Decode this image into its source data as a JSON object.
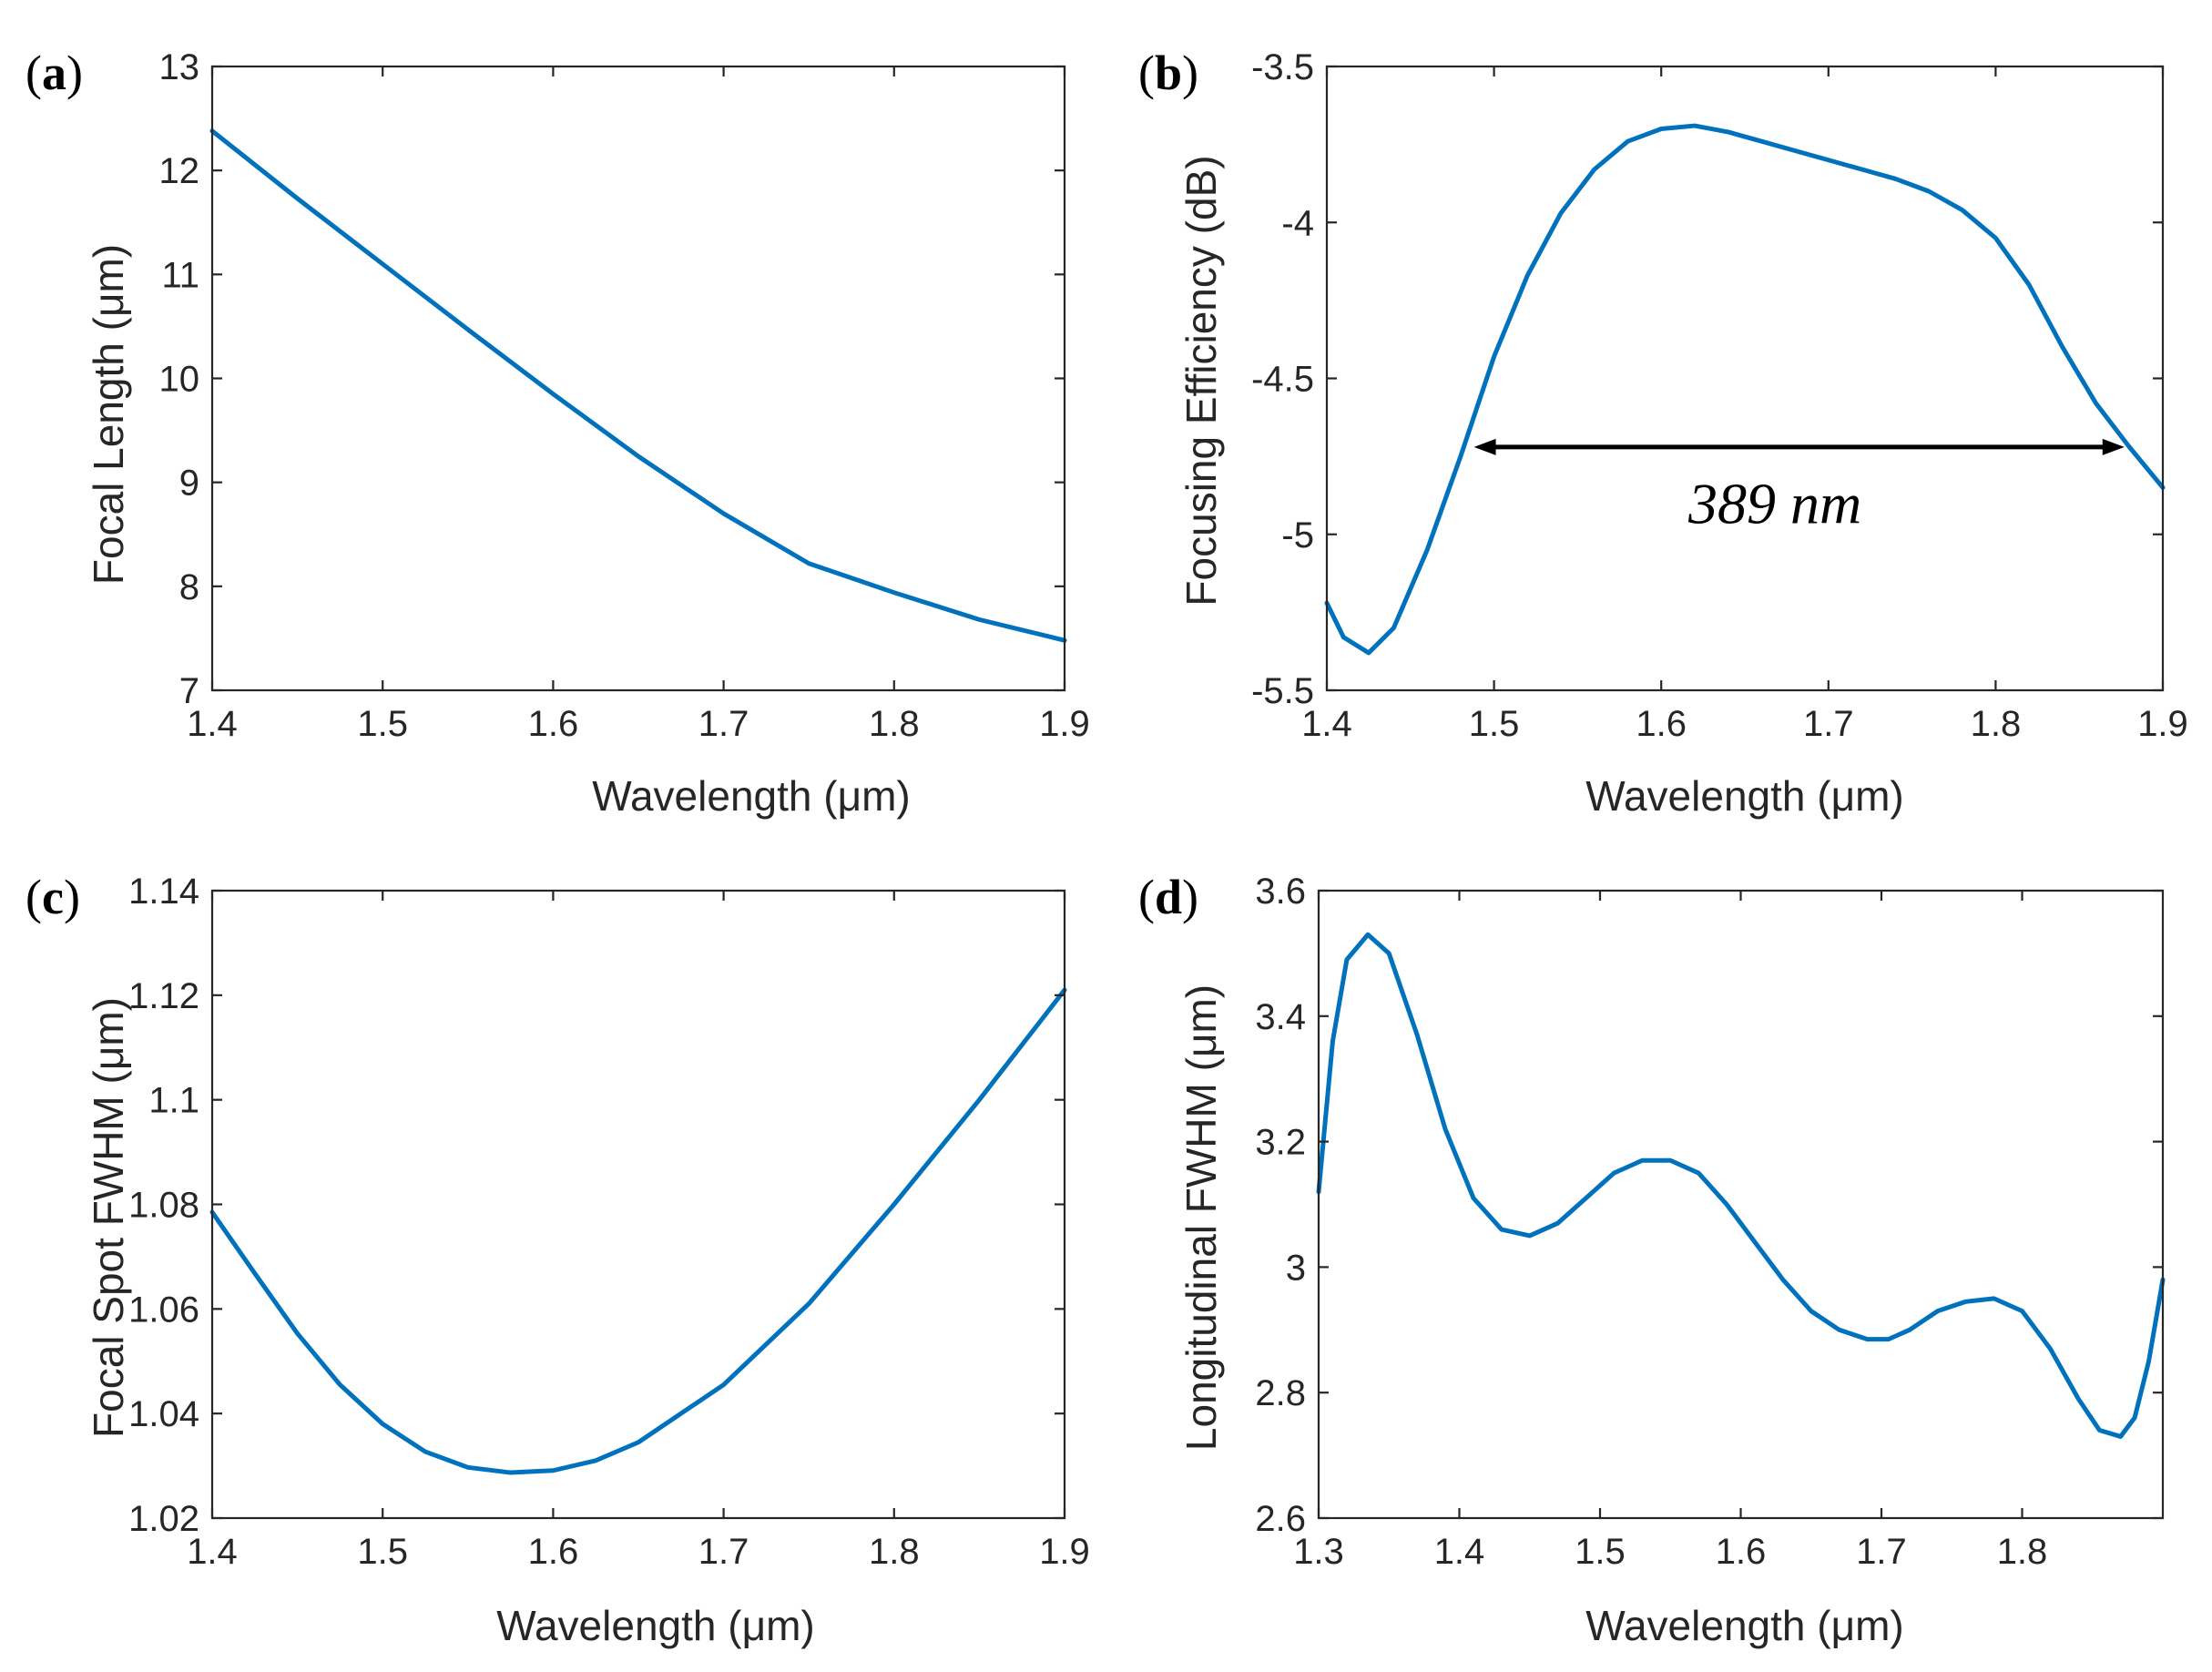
{
  "figure": {
    "background": "#ffffff",
    "line_color": "#0072BD"
  },
  "chart_data": [
    {
      "id": "a",
      "type": "line",
      "panel_label": "(a)",
      "panel_letter": "a",
      "title": "",
      "xlabel": "Wavelength (μm)",
      "ylabel": "Focal Length (μm)",
      "xlim": [
        1.4,
        1.9
      ],
      "ylim": [
        7,
        13
      ],
      "xticks": [
        1.4,
        1.5,
        1.6,
        1.7,
        1.8,
        1.9
      ],
      "yticks": [
        7,
        8,
        9,
        10,
        11,
        12,
        13
      ],
      "xtick_labels": [
        "1.4",
        "1.5",
        "1.6",
        "1.7",
        "1.8",
        "1.9"
      ],
      "ytick_labels": [
        "7",
        "8",
        "9",
        "10",
        "11",
        "12",
        "13"
      ],
      "series": [
        {
          "name": "Focal Length",
          "x": [
            1.4,
            1.45,
            1.5,
            1.55,
            1.6,
            1.65,
            1.7,
            1.75,
            1.8,
            1.85,
            1.9
          ],
          "y": [
            12.38,
            11.73,
            11.1,
            10.47,
            9.85,
            9.25,
            8.7,
            8.22,
            7.94,
            7.68,
            7.48
          ]
        }
      ]
    },
    {
      "id": "b",
      "type": "line",
      "panel_label": "(b)",
      "panel_letter": "b",
      "title": "",
      "xlabel": "Wavelength (μm)",
      "ylabel": "Focusing Efficiency (dB)",
      "xlim": [
        1.4,
        1.9
      ],
      "ylim": [
        -5.5,
        -3.5
      ],
      "xticks": [
        1.4,
        1.5,
        1.6,
        1.7,
        1.8,
        1.9
      ],
      "yticks": [
        -5.5,
        -5,
        -4.5,
        -4,
        -3.5
      ],
      "xtick_labels": [
        "1.4",
        "1.5",
        "1.6",
        "1.7",
        "1.8",
        "1.9"
      ],
      "ytick_labels": [
        "-5.5",
        "-5",
        "-4.5",
        "-4",
        "-3.5"
      ],
      "series": [
        {
          "name": "Focusing Efficiency",
          "x": [
            1.4,
            1.41,
            1.425,
            1.44,
            1.46,
            1.48,
            1.5,
            1.52,
            1.54,
            1.56,
            1.58,
            1.6,
            1.62,
            1.64,
            1.66,
            1.68,
            1.7,
            1.72,
            1.74,
            1.76,
            1.78,
            1.8,
            1.82,
            1.84,
            1.86,
            1.88,
            1.9
          ],
          "y": [
            -5.22,
            -5.33,
            -5.38,
            -5.3,
            -5.05,
            -4.75,
            -4.43,
            -4.17,
            -3.97,
            -3.83,
            -3.74,
            -3.7,
            -3.69,
            -3.71,
            -3.74,
            -3.77,
            -3.8,
            -3.83,
            -3.86,
            -3.9,
            -3.96,
            -4.05,
            -4.2,
            -4.4,
            -4.58,
            -4.72,
            -4.85
          ]
        }
      ],
      "annotation": {
        "text": "389 nm",
        "arrow_y": -4.72,
        "arrow_x_start": 1.488,
        "arrow_x_end": 1.877,
        "text_x": 1.668,
        "text_y": -4.9
      }
    },
    {
      "id": "c",
      "type": "line",
      "panel_label": "(c)",
      "panel_letter": "c",
      "title": "",
      "xlabel": "Wavelength (μm)",
      "ylabel": "Focal Spot FWHM (μm)",
      "xlim": [
        1.4,
        1.9
      ],
      "ylim": [
        1.02,
        1.14
      ],
      "xticks": [
        1.4,
        1.5,
        1.6,
        1.7,
        1.8,
        1.9
      ],
      "yticks": [
        1.02,
        1.04,
        1.06,
        1.08,
        1.1,
        1.12,
        1.14
      ],
      "xtick_labels": [
        "1.4",
        "1.5",
        "1.6",
        "1.7",
        "1.8",
        "1.9"
      ],
      "ytick_labels": [
        "1.02",
        "1.04",
        "1.06",
        "1.08",
        "1.1",
        "1.12",
        "1.14"
      ],
      "series": [
        {
          "name": "Focal Spot FWHM",
          "x": [
            1.4,
            1.425,
            1.45,
            1.475,
            1.5,
            1.525,
            1.55,
            1.575,
            1.6,
            1.625,
            1.65,
            1.7,
            1.75,
            1.8,
            1.85,
            1.9
          ],
          "y": [
            1.0785,
            1.0668,
            1.0553,
            1.0455,
            1.038,
            1.0327,
            1.0297,
            1.0287,
            1.0291,
            1.031,
            1.0345,
            1.0455,
            1.061,
            1.08,
            1.1,
            1.121
          ]
        }
      ]
    },
    {
      "id": "d",
      "type": "line",
      "panel_label": "(d)",
      "panel_letter": "d",
      "title": "",
      "xlabel": "Wavelength (μm)",
      "ylabel": "Longitudinal FWHM (μm)",
      "xlim": [
        1.3,
        1.9
      ],
      "ylim": [
        2.6,
        3.6
      ],
      "xticks": [
        1.3,
        1.4,
        1.5,
        1.6,
        1.7,
        1.8
      ],
      "yticks": [
        2.6,
        2.8,
        3,
        3.2,
        3.4,
        3.6
      ],
      "xtick_labels": [
        "1.3",
        "1.4",
        "1.5",
        "1.6",
        "1.7",
        "1.8"
      ],
      "ytick_labels": [
        "2.6",
        "2.8",
        "3",
        "3.2",
        "3.4",
        "3.6"
      ],
      "series": [
        {
          "name": "Longitudinal FWHM",
          "x": [
            1.3,
            1.31,
            1.32,
            1.335,
            1.35,
            1.37,
            1.39,
            1.41,
            1.43,
            1.45,
            1.47,
            1.49,
            1.51,
            1.53,
            1.55,
            1.57,
            1.59,
            1.61,
            1.63,
            1.65,
            1.67,
            1.69,
            1.705,
            1.72,
            1.74,
            1.76,
            1.78,
            1.8,
            1.82,
            1.84,
            1.855,
            1.87,
            1.88,
            1.89,
            1.9
          ],
          "y": [
            3.12,
            3.36,
            3.49,
            3.53,
            3.5,
            3.37,
            3.22,
            3.11,
            3.06,
            3.05,
            3.07,
            3.11,
            3.15,
            3.17,
            3.17,
            3.15,
            3.1,
            3.04,
            2.98,
            2.93,
            2.9,
            2.885,
            2.885,
            2.9,
            2.93,
            2.945,
            2.95,
            2.93,
            2.87,
            2.79,
            2.74,
            2.73,
            2.76,
            2.85,
            2.98
          ]
        }
      ]
    }
  ]
}
